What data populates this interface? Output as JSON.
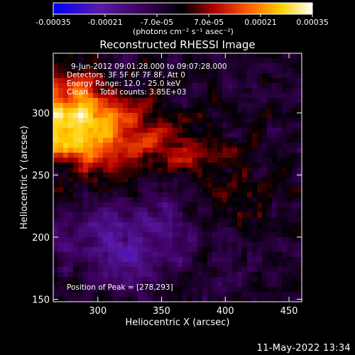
{
  "chart_data": {
    "type": "heatmap",
    "title": "Reconstructed RHESSI Image",
    "xlabel": "Heliocentric X (arcsec)",
    "ylabel": "Heliocentric Y (arcsec)",
    "xlim": [
      265,
      460
    ],
    "ylim": [
      148,
      348
    ],
    "x_ticks": [
      300,
      350,
      400,
      450
    ],
    "y_ticks": [
      150,
      200,
      250,
      300
    ],
    "colorbar": {
      "range": [
        -0.00035,
        0.00035
      ],
      "tick_labels": [
        "-0.00035",
        "-0.00021",
        "-7.0e-05",
        "7.0e-05",
        "0.00021",
        "0.00035"
      ],
      "unit_label": "(photons cm⁻² s⁻¹ asec⁻²)",
      "colors": [
        "#0000ff",
        "#5a1aa8",
        "#3a0058",
        "#000000",
        "#b00000",
        "#ff5a00",
        "#ffd000",
        "#ffffff"
      ]
    },
    "annotations": [
      "9-Jun-2012 09:01:28.000 to 09:07:28.000",
      "Detectors: 3F 5F 6F 7F 8F, Att 0",
      "Energy Range: 12.0 - 25.0 keV",
      "Clean     Total counts: 3.85E+03"
    ],
    "peak_label": "Position of Peak = [278,293]",
    "peak": [
      278,
      293
    ]
  },
  "footer": {
    "timestamp": "11-May-2022 13:34"
  }
}
